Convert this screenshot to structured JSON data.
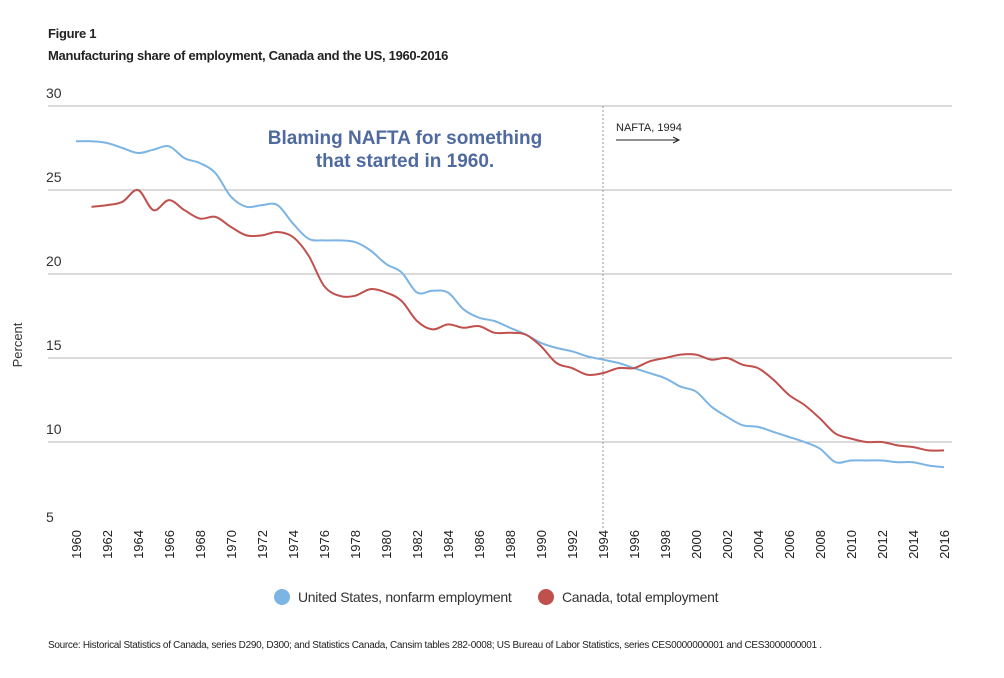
{
  "figure_label": "Figure 1",
  "subtitle": "Manufacturing share of employment, Canada and the US, 1960-2016",
  "source": "Source: Historical Statistics of Canada, series D290, D300; and Statistics Canada, Cansim tables 282-0008; US Bureau of Labor Statistics, series CES0000000001 and CES3000000001 .",
  "chart_data": {
    "type": "line",
    "title": "Manufacturing share of employment, Canada and the US, 1960-2016",
    "ylabel": "Percent",
    "xlabel": "",
    "ylim": [
      5,
      30
    ],
    "xlim": [
      1960,
      2016
    ],
    "yticks": [
      "30",
      "25",
      "20",
      "15",
      "10",
      "5"
    ],
    "xticks": [
      "1960",
      "1962",
      "1964",
      "1966",
      "1968",
      "1970",
      "1972",
      "1974",
      "1976",
      "1978",
      "1980",
      "1982",
      "1984",
      "1986",
      "1988",
      "1990",
      "1992",
      "1994",
      "1996",
      "1998",
      "2000",
      "2002",
      "2004",
      "2006",
      "2008",
      "2010",
      "2012",
      "2014",
      "2016"
    ],
    "grid": "horizontal",
    "legend_position": "bottom",
    "annotations": {
      "headline": [
        "Blaming NAFTA for something",
        "that started in 1960."
      ],
      "headline_color": "#4f6a9f",
      "event_label": "NAFTA, 1994",
      "event_x": 1994
    },
    "series": [
      {
        "name": "United States, nonfarm employment",
        "color": "#7cb4e4",
        "start": 1960,
        "values": [
          27.9,
          27.9,
          27.8,
          27.5,
          27.2,
          27.4,
          27.6,
          26.9,
          26.6,
          26.0,
          24.6,
          24.0,
          24.1,
          24.1,
          23.0,
          22.1,
          22.0,
          22.0,
          21.9,
          21.4,
          20.6,
          20.1,
          18.9,
          19.0,
          18.9,
          17.9,
          17.4,
          17.2,
          16.8,
          16.4,
          15.9,
          15.6,
          15.4,
          15.1,
          14.9,
          14.7,
          14.4,
          14.1,
          13.8,
          13.3,
          13.0,
          12.1,
          11.5,
          11.0,
          10.9,
          10.6,
          10.3,
          10.0,
          9.6,
          8.8,
          8.9,
          8.9,
          8.9,
          8.8,
          8.8,
          8.6,
          8.5
        ]
      },
      {
        "name": "Canada, total employment",
        "color": "#c0504d",
        "start": 1961,
        "values": [
          24.0,
          24.1,
          24.3,
          25.0,
          23.8,
          24.4,
          23.8,
          23.3,
          23.4,
          22.8,
          22.3,
          22.3,
          22.5,
          22.2,
          21.1,
          19.3,
          18.7,
          18.7,
          19.1,
          18.9,
          18.4,
          17.2,
          16.7,
          17.0,
          16.8,
          16.9,
          16.5,
          16.5,
          16.4,
          15.7,
          14.7,
          14.4,
          14.0,
          14.1,
          14.4,
          14.4,
          14.8,
          15.0,
          15.2,
          15.2,
          14.9,
          15.0,
          14.6,
          14.4,
          13.7,
          12.8,
          12.2,
          11.4,
          10.5,
          10.2,
          10.0,
          10.0,
          9.8,
          9.7,
          9.5,
          9.5
        ]
      }
    ]
  }
}
